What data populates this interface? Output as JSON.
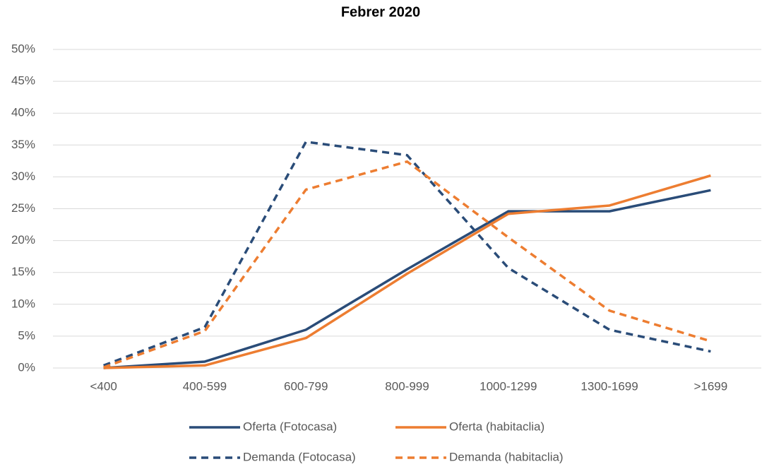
{
  "chart_data": {
    "type": "line",
    "title": "Febrer 2020",
    "categories": [
      "<400",
      "400-599",
      "600-799",
      "800-999",
      "1000-1299",
      "1300-1699",
      ">1699"
    ],
    "series": [
      {
        "name": "Oferta (Fotocasa)",
        "color": "#2a4c78",
        "dashed": false,
        "values": [
          0,
          1,
          6,
          15.5,
          24.6,
          24.6,
          27.9
        ]
      },
      {
        "name": "Oferta (habitaclia)",
        "color": "#ed7d31",
        "dashed": false,
        "values": [
          0,
          0.4,
          4.7,
          14.8,
          24.2,
          25.5,
          30.2
        ]
      },
      {
        "name": "Demanda (Fotocasa)",
        "color": "#2a4c78",
        "dashed": true,
        "values": [
          0.4,
          6.4,
          35.5,
          33.4,
          15.7,
          6,
          2.6
        ]
      },
      {
        "name": "Demanda (habitaclia)",
        "color": "#ed7d31",
        "dashed": true,
        "values": [
          0.1,
          5.8,
          28,
          32.4,
          20.5,
          9,
          4.2
        ]
      }
    ],
    "ylim": [
      0,
      50
    ],
    "yticks": [
      {
        "value": 0,
        "label": "0%"
      },
      {
        "value": 5,
        "label": "5%"
      },
      {
        "value": 10,
        "label": "10%"
      },
      {
        "value": 15,
        "label": "15%"
      },
      {
        "value": 20,
        "label": "20%"
      },
      {
        "value": 25,
        "label": "25%"
      },
      {
        "value": 30,
        "label": "30%"
      },
      {
        "value": 35,
        "label": "35%"
      },
      {
        "value": 40,
        "label": "40%"
      },
      {
        "value": 45,
        "label": "45%"
      },
      {
        "value": 50,
        "label": "50%"
      }
    ],
    "grid": true
  }
}
